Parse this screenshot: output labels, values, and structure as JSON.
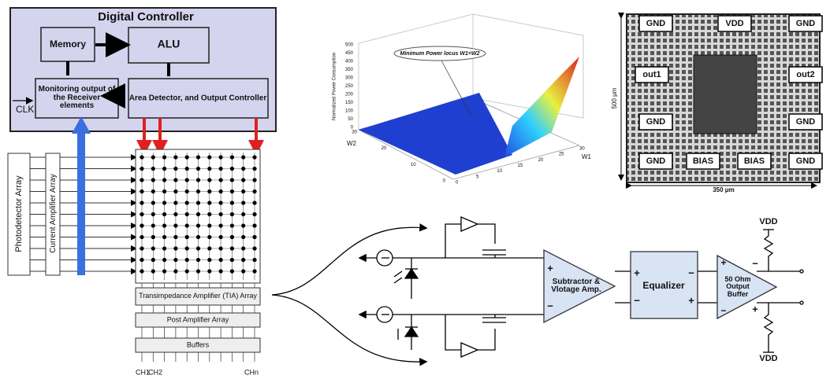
{
  "controller": {
    "title": "Digital Controller",
    "memory": "Memory",
    "alu": "ALU",
    "monitoring": "Monitoring output of the Receiver elements",
    "area_detector": "Area Detector, and Output Controller",
    "clk": "CLK"
  },
  "receiver": {
    "photodetector": "Photodetector Array",
    "current_amplifier": "Current Amplifier Array",
    "tia": "Transimpedance Amplifier (TIA) Array",
    "post_amplifier": "Post Amplifier Array",
    "buffers": "Buffers",
    "channels": [
      "CH1",
      "CH2",
      "CHn"
    ]
  },
  "surface_plot": {
    "annotation": "Minimum Power locus W1=W2",
    "z_label": "Normalized Power Consumption",
    "zticks": [
      0,
      50,
      100,
      150,
      200,
      250,
      300,
      350,
      400,
      450,
      500
    ],
    "x_label": "W1",
    "xticks": [
      0,
      5,
      10,
      15,
      20,
      25,
      30
    ],
    "y_label": "W2",
    "yticks": [
      0,
      10,
      20,
      30
    ]
  },
  "chip": {
    "pads": [
      "GND",
      "VDD",
      "GND",
      "out1",
      "out2",
      "GND",
      "GND",
      "GND",
      "BIAS",
      "BIAS",
      "GND"
    ],
    "height": "500 μm",
    "width": "350 μm"
  },
  "circuit": {
    "subtractor": "Subtractor & Vlotage Amp.",
    "equalizer": "Equalizer",
    "output_buffer": "50 Ohm Output Buffer",
    "supply": [
      "VDD",
      "VDD"
    ],
    "plus": "+",
    "minus": "−"
  }
}
